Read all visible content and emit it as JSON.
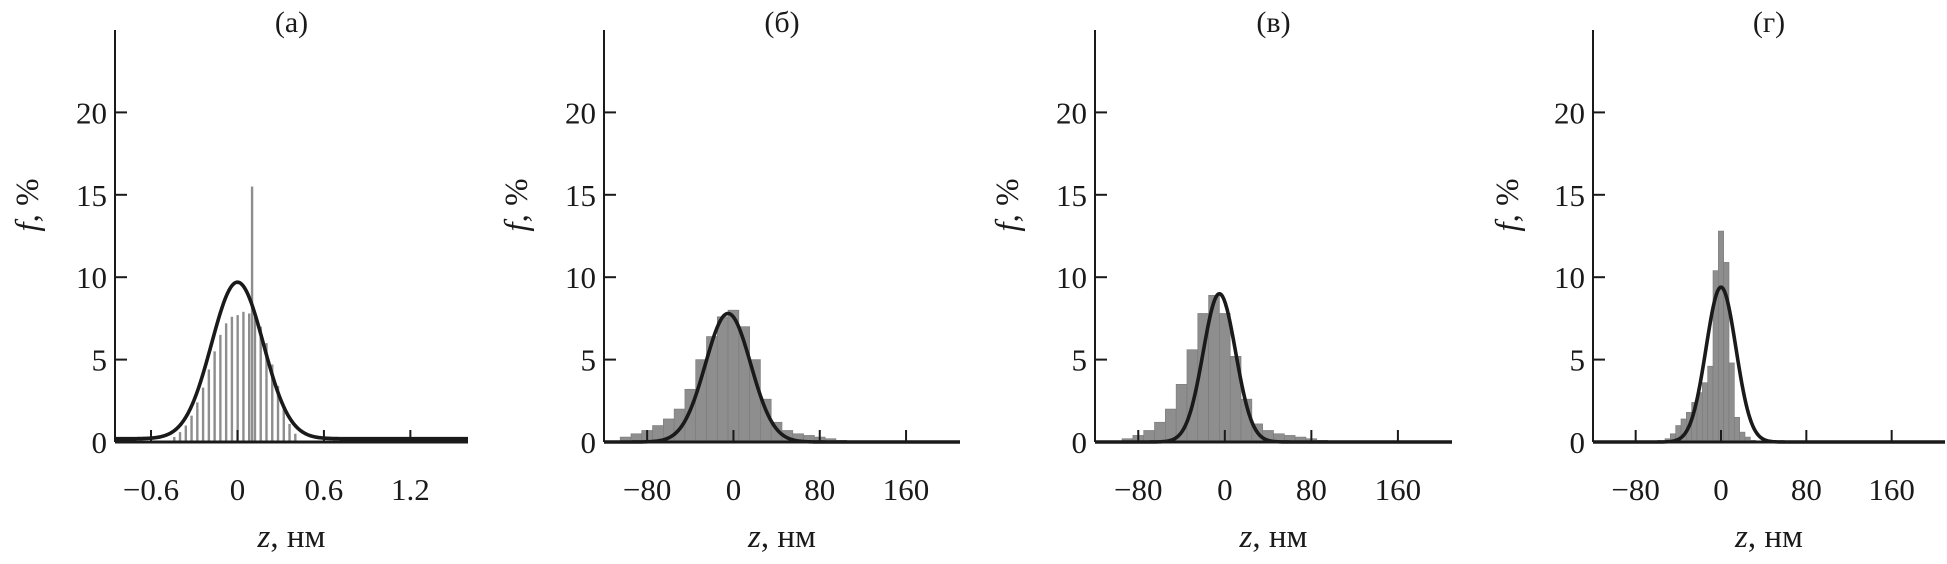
{
  "chart_data": [
    {
      "type": "histogram",
      "panel_label": "(а)",
      "xlabel_var": "z",
      "xlabel_unit": ", нм",
      "ylabel_var": "f",
      "ylabel_unit": ", %",
      "xlim": [
        -0.85,
        1.6
      ],
      "ylim": [
        0,
        25
      ],
      "xticks": [
        -0.6,
        0,
        0.6,
        1.2
      ],
      "xtick_labels": [
        "−0.6",
        "0",
        "0.6",
        "1.2"
      ],
      "yticks": [
        0,
        5,
        10,
        15,
        20
      ],
      "ytick_labels": [
        "0",
        "5",
        "10",
        "15",
        "20"
      ],
      "bars": {
        "style": "thin-lines",
        "x": [
          -0.44,
          -0.4,
          -0.36,
          -0.32,
          -0.28,
          -0.24,
          -0.2,
          -0.16,
          -0.12,
          -0.08,
          -0.04,
          0.0,
          0.04,
          0.08,
          0.1,
          0.12,
          0.16,
          0.2,
          0.24,
          0.28,
          0.32,
          0.36,
          0.4
        ],
        "values": [
          0.3,
          0.6,
          1.0,
          1.6,
          2.4,
          3.3,
          4.4,
          5.5,
          6.5,
          7.2,
          7.6,
          7.7,
          7.9,
          7.8,
          15.5,
          7.6,
          7.0,
          6.0,
          4.7,
          3.4,
          2.1,
          1.1,
          0.5
        ]
      },
      "fit": {
        "type": "gaussian",
        "mean": 0.0,
        "sigma": 0.18,
        "peak": 9.7,
        "baseline": 0.2
      }
    },
    {
      "type": "histogram",
      "panel_label": "(б)",
      "xlabel_var": "z",
      "xlabel_unit": ", нм",
      "ylabel_var": "f",
      "ylabel_unit": ", %",
      "xlim": [
        -120,
        210
      ],
      "ylim": [
        0,
        25
      ],
      "xticks": [
        -80,
        0,
        80,
        160
      ],
      "xtick_labels": [
        "−80",
        "0",
        "80",
        "160"
      ],
      "yticks": [
        0,
        5,
        10,
        15,
        20
      ],
      "ytick_labels": [
        "0",
        "5",
        "10",
        "15",
        "20"
      ],
      "bars": {
        "style": "filled",
        "x": [
          -100,
          -90,
          -80,
          -70,
          -60,
          -50,
          -40,
          -30,
          -20,
          -10,
          0,
          10,
          20,
          30,
          40,
          50,
          60,
          70,
          80,
          90,
          100
        ],
        "values": [
          0.3,
          0.5,
          0.7,
          1.0,
          1.4,
          2.0,
          3.2,
          5.0,
          6.4,
          7.6,
          8.0,
          7.0,
          5.0,
          2.6,
          1.2,
          0.7,
          0.5,
          0.4,
          0.3,
          0.2,
          0.1
        ]
      },
      "fit": {
        "type": "gaussian",
        "mean": -5,
        "sigma": 21,
        "peak": 7.8,
        "baseline": 0
      }
    },
    {
      "type": "histogram",
      "panel_label": "(в)",
      "xlabel_var": "z",
      "xlabel_unit": ", нм",
      "ylabel_var": "f",
      "ylabel_unit": ", %",
      "xlim": [
        -120,
        210
      ],
      "ylim": [
        0,
        25
      ],
      "xticks": [
        -80,
        0,
        80,
        160
      ],
      "xtick_labels": [
        "−80",
        "0",
        "80",
        "160"
      ],
      "yticks": [
        0,
        5,
        10,
        15,
        20
      ],
      "ytick_labels": [
        "0",
        "5",
        "10",
        "15",
        "20"
      ],
      "bars": {
        "style": "filled",
        "x": [
          -90,
          -80,
          -70,
          -60,
          -50,
          -40,
          -30,
          -20,
          -10,
          0,
          10,
          20,
          30,
          40,
          50,
          60,
          70,
          80,
          90
        ],
        "values": [
          0.2,
          0.4,
          0.7,
          1.2,
          2.0,
          3.5,
          5.6,
          7.8,
          8.9,
          7.8,
          5.2,
          2.6,
          1.1,
          0.7,
          0.5,
          0.4,
          0.3,
          0.2,
          0.1
        ]
      },
      "fit": {
        "type": "gaussian",
        "mean": -5,
        "sigma": 15,
        "peak": 9.0,
        "baseline": 0
      }
    },
    {
      "type": "histogram",
      "panel_label": "(г)",
      "xlabel_var": "z",
      "xlabel_unit": ", нм",
      "ylabel_var": "f",
      "ylabel_unit": ", %",
      "xlim": [
        -120,
        210
      ],
      "ylim": [
        0,
        25
      ],
      "xticks": [
        -80,
        0,
        80,
        160
      ],
      "xtick_labels": [
        "−80",
        "0",
        "80",
        "160"
      ],
      "yticks": [
        0,
        5,
        10,
        15,
        20
      ],
      "ytick_labels": [
        "0",
        "5",
        "10",
        "15",
        "20"
      ],
      "bars": {
        "style": "filled",
        "x": [
          -50,
          -45,
          -40,
          -35,
          -30,
          -25,
          -20,
          -15,
          -10,
          -5,
          0,
          5,
          10,
          15,
          20,
          25,
          30
        ],
        "values": [
          0.2,
          0.5,
          1.0,
          1.4,
          1.8,
          2.4,
          3.0,
          3.6,
          4.6,
          10.4,
          12.8,
          10.9,
          4.8,
          1.5,
          0.6,
          0.3,
          0.1
        ]
      },
      "fit": {
        "type": "gaussian",
        "mean": 0,
        "sigma": 14,
        "peak": 9.4,
        "baseline": 0
      }
    }
  ],
  "colors": {
    "bars": "#8e8e8e",
    "bars_edge": "#7a7a7a",
    "axis": "#1a1a1a",
    "fit": "#1a1a1a"
  }
}
